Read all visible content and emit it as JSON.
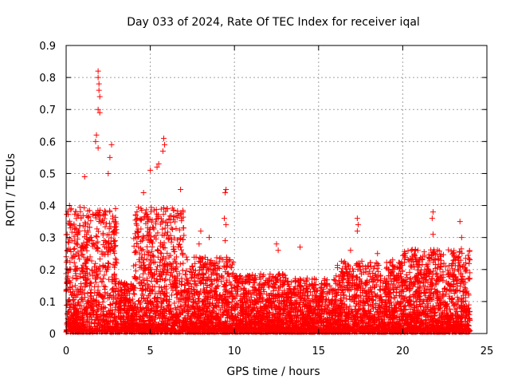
{
  "chart_data": {
    "type": "scatter",
    "title": "Day 033 of 2024, Rate Of TEC Index for receiver iqal",
    "xlabel": "GPS time / hours",
    "ylabel": "ROTI / TECUs",
    "xlim": [
      0,
      25
    ],
    "ylim": [
      0,
      0.9
    ],
    "x_ticks": [
      "0",
      "5",
      "10",
      "15",
      "20",
      "25"
    ],
    "y_ticks": [
      "0",
      "0.1",
      "0.2",
      "0.3",
      "0.4",
      "0.5",
      "0.6",
      "0.7",
      "0.8",
      "0.9"
    ],
    "grid": true,
    "marker": "plus",
    "series_color": "#ff0000",
    "series": [
      {
        "name": "ROTI",
        "description": "dense cloud of ROTI samples over 0-24 h; representative extreme points listed below, bulk cloud generated procedurally",
        "notable_points": [
          {
            "x": 1.9,
            "y": 0.82
          },
          {
            "x": 1.9,
            "y": 0.8
          },
          {
            "x": 1.95,
            "y": 0.78
          },
          {
            "x": 1.95,
            "y": 0.76
          },
          {
            "x": 2.0,
            "y": 0.74
          },
          {
            "x": 1.9,
            "y": 0.7
          },
          {
            "x": 2.0,
            "y": 0.69
          },
          {
            "x": 1.8,
            "y": 0.62
          },
          {
            "x": 1.75,
            "y": 0.6
          },
          {
            "x": 1.9,
            "y": 0.58
          },
          {
            "x": 2.7,
            "y": 0.59
          },
          {
            "x": 2.6,
            "y": 0.55
          },
          {
            "x": 5.8,
            "y": 0.61
          },
          {
            "x": 5.85,
            "y": 0.59
          },
          {
            "x": 5.75,
            "y": 0.57
          },
          {
            "x": 5.4,
            "y": 0.52
          },
          {
            "x": 5.5,
            "y": 0.53
          },
          {
            "x": 5.0,
            "y": 0.51
          },
          {
            "x": 1.1,
            "y": 0.49
          },
          {
            "x": 2.5,
            "y": 0.5
          },
          {
            "x": 4.6,
            "y": 0.44
          },
          {
            "x": 6.8,
            "y": 0.45
          },
          {
            "x": 9.5,
            "y": 0.45
          },
          {
            "x": 9.45,
            "y": 0.44
          },
          {
            "x": 0.2,
            "y": 0.4
          },
          {
            "x": 0.3,
            "y": 0.39
          },
          {
            "x": 9.4,
            "y": 0.36
          },
          {
            "x": 9.5,
            "y": 0.34
          },
          {
            "x": 9.45,
            "y": 0.29
          },
          {
            "x": 17.3,
            "y": 0.36
          },
          {
            "x": 17.35,
            "y": 0.34
          },
          {
            "x": 17.3,
            "y": 0.32
          },
          {
            "x": 21.8,
            "y": 0.38
          },
          {
            "x": 21.75,
            "y": 0.36
          },
          {
            "x": 21.8,
            "y": 0.31
          },
          {
            "x": 23.4,
            "y": 0.35
          },
          {
            "x": 23.5,
            "y": 0.3
          },
          {
            "x": 12.5,
            "y": 0.28
          },
          {
            "x": 12.6,
            "y": 0.26
          },
          {
            "x": 13.9,
            "y": 0.27
          },
          {
            "x": 16.9,
            "y": 0.26
          },
          {
            "x": 18.5,
            "y": 0.25
          },
          {
            "x": 19.4,
            "y": 0.23
          },
          {
            "x": 20.9,
            "y": 0.26
          },
          {
            "x": 23.0,
            "y": 0.25
          },
          {
            "x": 8.0,
            "y": 0.32
          },
          {
            "x": 8.5,
            "y": 0.3
          },
          {
            "x": 7.9,
            "y": 0.28
          }
        ]
      }
    ]
  }
}
